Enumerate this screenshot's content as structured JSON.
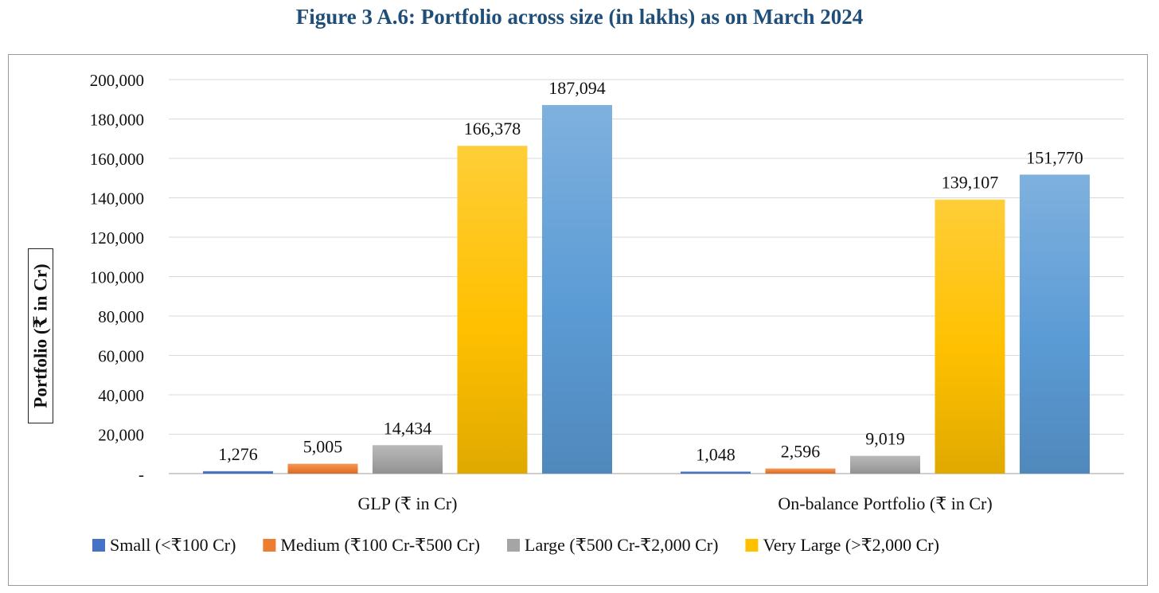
{
  "title": "Figure 3 A.6: Portfolio across size (in lakhs) as on March 2024",
  "chart_data": {
    "type": "bar",
    "ylabel": "Portfolio (₹ in Cr)",
    "ylim": [
      0,
      200000
    ],
    "yticks": [
      {
        "value": 0,
        "label": "-"
      },
      {
        "value": 20000,
        "label": "20,000"
      },
      {
        "value": 40000,
        "label": "40,000"
      },
      {
        "value": 60000,
        "label": "60,000"
      },
      {
        "value": 80000,
        "label": "80,000"
      },
      {
        "value": 100000,
        "label": "100,000"
      },
      {
        "value": 120000,
        "label": "120,000"
      },
      {
        "value": 140000,
        "label": "140,000"
      },
      {
        "value": 160000,
        "label": "160,000"
      },
      {
        "value": 180000,
        "label": "180,000"
      },
      {
        "value": 200000,
        "label": "200,000"
      }
    ],
    "grid": true,
    "legend_position": "bottom",
    "categories": [
      "GLP (₹ in Cr)",
      "On-balance Portfolio (₹ in Cr)"
    ],
    "series": [
      {
        "name": "Small (<₹100 Cr)",
        "values": [
          1276,
          1048
        ],
        "labels": [
          "1,276",
          "1,048"
        ],
        "color": "#4472c4",
        "legend": true
      },
      {
        "name": "Medium (₹100 Cr-₹500 Cr)",
        "values": [
          5005,
          2596
        ],
        "labels": [
          "5,005",
          "2,596"
        ],
        "color": "#ed7d31",
        "legend": true
      },
      {
        "name": "Large (₹500 Cr-₹2,000 Cr)",
        "values": [
          14434,
          9019
        ],
        "labels": [
          "14,434",
          "9,019"
        ],
        "color": "#a5a5a5",
        "legend": true
      },
      {
        "name": "Very Large (>₹2,000 Cr)",
        "values": [
          166378,
          139107
        ],
        "labels": [
          "166,378",
          "139,107"
        ],
        "color": "#ffc000",
        "legend": true
      },
      {
        "name": "",
        "values": [
          187094,
          151770
        ],
        "labels": [
          "187,094",
          "151,770"
        ],
        "color": "#5b9bd5",
        "legend": false
      }
    ]
  }
}
